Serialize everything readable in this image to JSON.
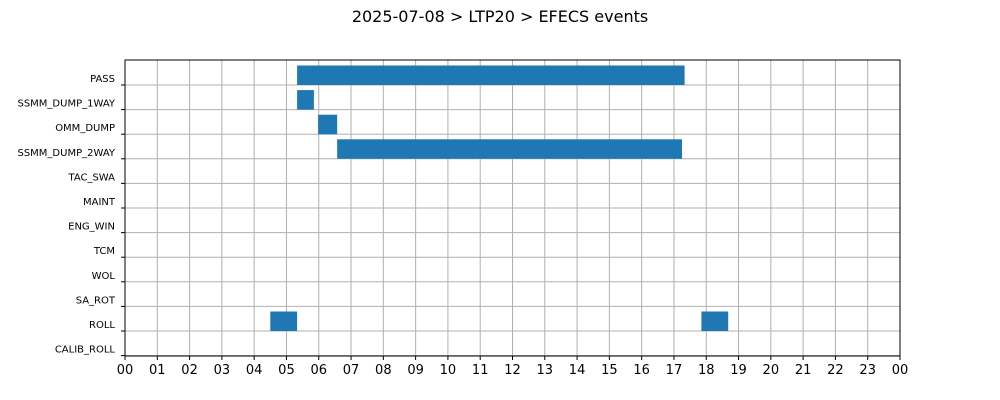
{
  "chart_data": {
    "type": "bar",
    "orientation": "horizontal",
    "title": "2025-07-08 > LTP20 > EFECS events",
    "categories": [
      "PASS",
      "SSMM_DUMP_1WAY",
      "OMM_DUMP",
      "SSMM_DUMP_2WAY",
      "TAC_SWA",
      "MAINT",
      "ENG_WIN",
      "TCM",
      "WOL",
      "SA_ROT",
      "ROLL",
      "CALIB_ROLL"
    ],
    "xlim": [
      0,
      24
    ],
    "x_tick_labels": [
      "00",
      "01",
      "02",
      "03",
      "04",
      "05",
      "06",
      "07",
      "08",
      "09",
      "10",
      "11",
      "12",
      "13",
      "14",
      "15",
      "16",
      "17",
      "18",
      "19",
      "20",
      "21",
      "22",
      "23",
      "00"
    ],
    "grid": true,
    "color": "#1f77b4",
    "events": [
      {
        "category": "PASS",
        "start": 5.33,
        "end": 17.33
      },
      {
        "category": "SSMM_DUMP_1WAY",
        "start": 5.33,
        "end": 5.85
      },
      {
        "category": "OMM_DUMP",
        "start": 5.98,
        "end": 6.57
      },
      {
        "category": "SSMM_DUMP_2WAY",
        "start": 6.57,
        "end": 17.25
      },
      {
        "category": "ROLL",
        "start": 4.5,
        "end": 5.33
      },
      {
        "category": "ROLL",
        "start": 17.85,
        "end": 18.68
      }
    ]
  }
}
